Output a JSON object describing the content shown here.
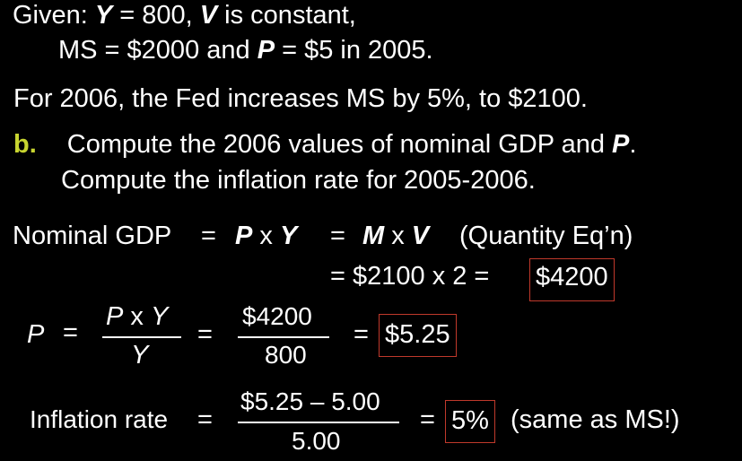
{
  "given": {
    "line1_prefix": "Given: ",
    "line1_Y": "Y",
    "line1_eq": " = 800, ",
    "line1_V": "V",
    "line1_rest": " is constant,",
    "line2_a": "MS = $2000 and ",
    "line2_P": "P",
    "line2_b": " = $5 in 2005."
  },
  "fed_line": "For 2006, the Fed increases MS by 5%, to $2100.",
  "part_b": {
    "label": "b.",
    "line1_a": "Compute the 2006 values of nominal GDP and ",
    "line1_P": "P",
    "line1_b": ".",
    "line2": "Compute the inflation rate for 2005-2006."
  },
  "gdp": {
    "label": "Nominal GDP",
    "eq1": "=",
    "P": "P",
    "x1": " x ",
    "Y": "Y",
    "eq2": "=",
    "M": "M",
    "x2": " x ",
    "V": "V",
    "note": "(Quantity Eq’n)",
    "line2_calc": "= $2100 x 2  =",
    "result": "$4200"
  },
  "price": {
    "P": "P",
    "eq": "=",
    "num_P": "P",
    "num_x": " x ",
    "num_Y": "Y",
    "den_Y": "Y",
    "eq2": "=",
    "num2": "$4200",
    "den2": "800",
    "eq3": "=",
    "result": "$5.25"
  },
  "inflation": {
    "label": "Inflation rate",
    "eq": "=",
    "num": "$5.25 – 5.00",
    "den": "5.00",
    "eq2": "=",
    "result": "5%",
    "note": "(same as MS!)"
  }
}
